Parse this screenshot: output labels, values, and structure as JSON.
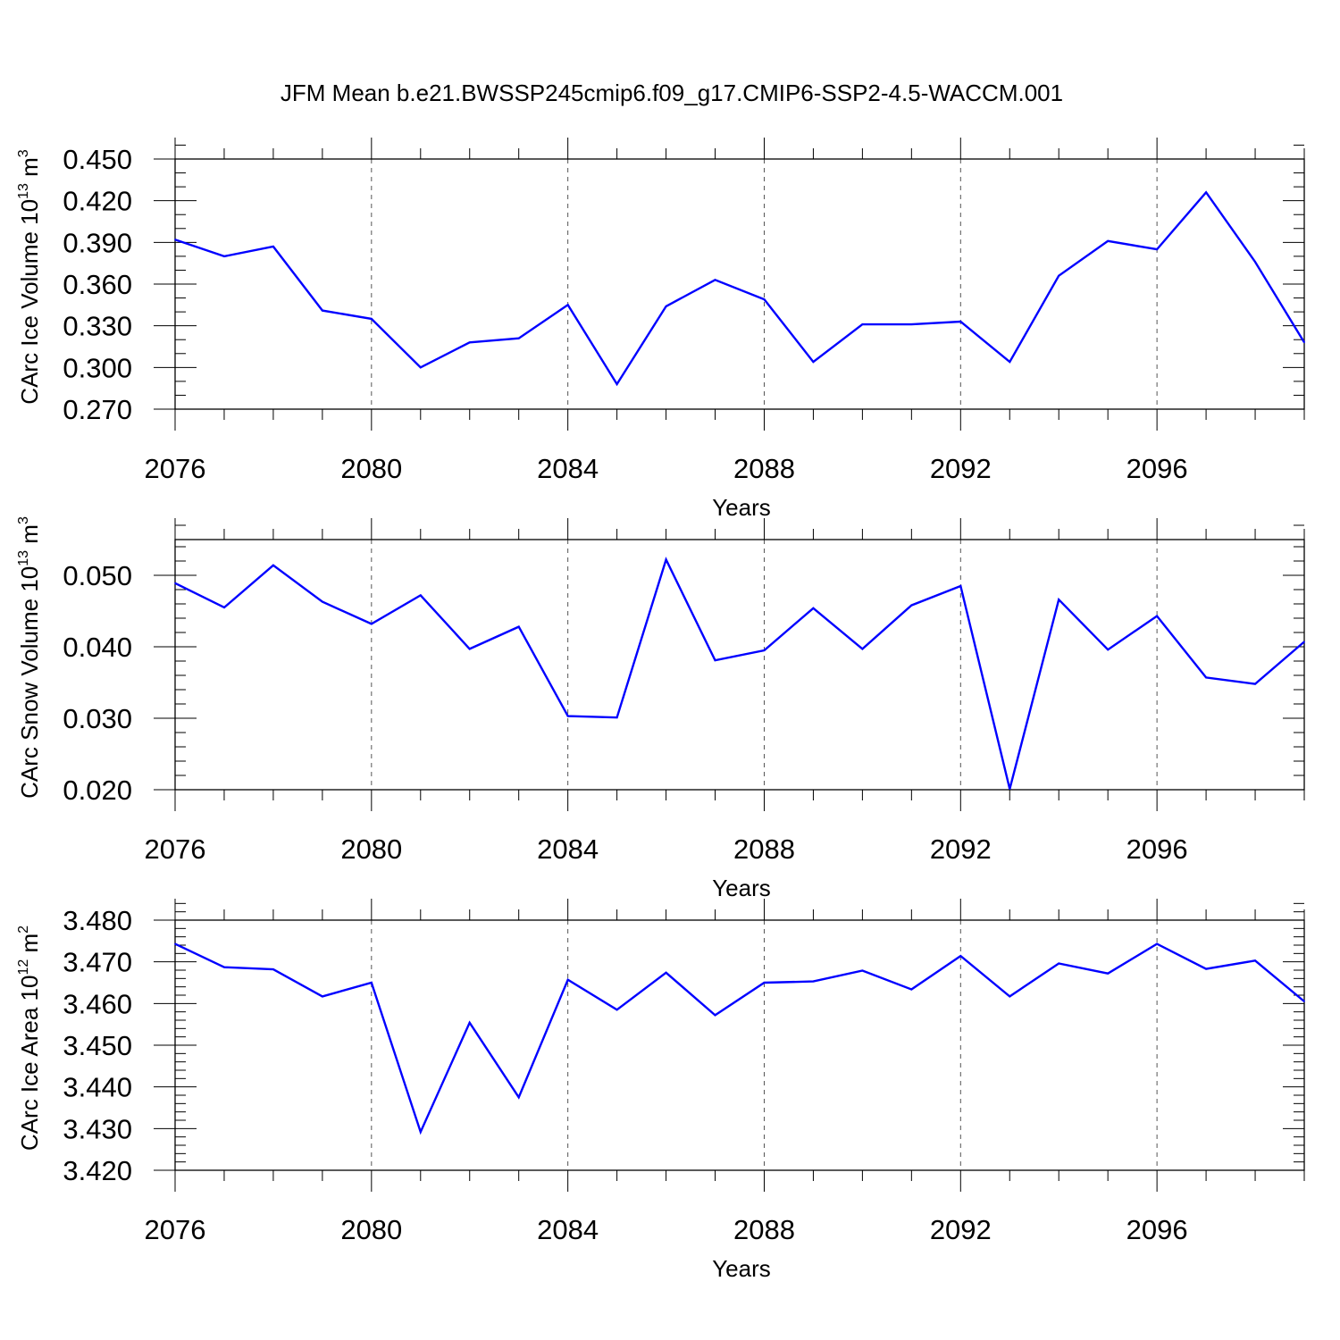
{
  "title": "JFM Mean b.e21.BWSSP245cmip6.f09_g17.CMIP6-SSP2-4.5-WACCM.001",
  "colors": {
    "line": "#0000ff",
    "axis": "#000000",
    "grid": "#555555"
  },
  "chart_data": [
    {
      "type": "line",
      "xlabel": "Years",
      "ylabel": {
        "main": "CArc Ice Volume 10",
        "exp": "13",
        "unit": " m",
        "unit_exp": "3"
      },
      "xlim": [
        2076,
        2099
      ],
      "ylim": [
        0.27,
        0.45
      ],
      "xticks": [
        2076,
        2080,
        2084,
        2088,
        2092,
        2096
      ],
      "yticks": [
        "0.270",
        "0.300",
        "0.330",
        "0.360",
        "0.390",
        "0.420",
        "0.450"
      ],
      "x": [
        2076,
        2077,
        2078,
        2079,
        2080,
        2081,
        2082,
        2083,
        2084,
        2085,
        2086,
        2087,
        2088,
        2089,
        2090,
        2091,
        2092,
        2093,
        2094,
        2095,
        2096,
        2097,
        2098,
        2099
      ],
      "series": [
        {
          "values": [
            0.392,
            0.38,
            0.387,
            0.341,
            0.335,
            0.3,
            0.318,
            0.321,
            0.345,
            0.288,
            0.344,
            0.363,
            0.349,
            0.304,
            0.331,
            0.331,
            0.333,
            0.304,
            0.366,
            0.391,
            0.385,
            0.426,
            0.376,
            0.318
          ]
        }
      ],
      "grid": "vertical dashed at major x ticks"
    },
    {
      "type": "line",
      "xlabel": "Years",
      "ylabel": {
        "main": "CArc Snow Volume 10",
        "exp": "13",
        "unit": " m",
        "unit_exp": "3"
      },
      "xlim": [
        2076,
        2099
      ],
      "ylim": [
        0.02,
        0.055
      ],
      "xticks": [
        2076,
        2080,
        2084,
        2088,
        2092,
        2096
      ],
      "yticks": [
        "0.020",
        "0.030",
        "0.040",
        "0.050"
      ],
      "x": [
        2076,
        2077,
        2078,
        2079,
        2080,
        2081,
        2082,
        2083,
        2084,
        2085,
        2086,
        2087,
        2088,
        2089,
        2090,
        2091,
        2092,
        2093,
        2094,
        2095,
        2096,
        2097,
        2098,
        2099
      ],
      "series": [
        {
          "values": [
            0.0489,
            0.0455,
            0.0514,
            0.0463,
            0.0432,
            0.0472,
            0.0397,
            0.0428,
            0.0303,
            0.0301,
            0.0522,
            0.0381,
            0.0395,
            0.0454,
            0.0397,
            0.0458,
            0.0485,
            0.0201,
            0.0466,
            0.0396,
            0.0443,
            0.0357,
            0.0348,
            0.0407
          ]
        }
      ],
      "grid": "vertical dashed at major x ticks"
    },
    {
      "type": "line",
      "xlabel": "Years",
      "ylabel": {
        "main": "CArc Ice Area 10",
        "exp": "12",
        "unit": " m",
        "unit_exp": "2"
      },
      "xlim": [
        2076,
        2099
      ],
      "ylim": [
        3.42,
        3.48
      ],
      "xticks": [
        2076,
        2080,
        2084,
        2088,
        2092,
        2096
      ],
      "yticks": [
        "3.420",
        "3.430",
        "3.440",
        "3.450",
        "3.460",
        "3.470",
        "3.480"
      ],
      "x": [
        2076,
        2077,
        2078,
        2079,
        2080,
        2081,
        2082,
        2083,
        2084,
        2085,
        2086,
        2087,
        2088,
        2089,
        2090,
        2091,
        2092,
        2093,
        2094,
        2095,
        2096,
        2097,
        2098,
        2099
      ],
      "series": [
        {
          "values": [
            3.4743,
            3.4687,
            3.4682,
            3.4617,
            3.465,
            3.4292,
            3.4554,
            3.4375,
            3.4657,
            3.4585,
            3.4674,
            3.4572,
            3.465,
            3.4653,
            3.4679,
            3.4634,
            3.4714,
            3.4617,
            3.4696,
            3.4672,
            3.4743,
            3.4683,
            3.4703,
            3.4605
          ]
        }
      ],
      "grid": "vertical dashed at major x ticks"
    }
  ]
}
